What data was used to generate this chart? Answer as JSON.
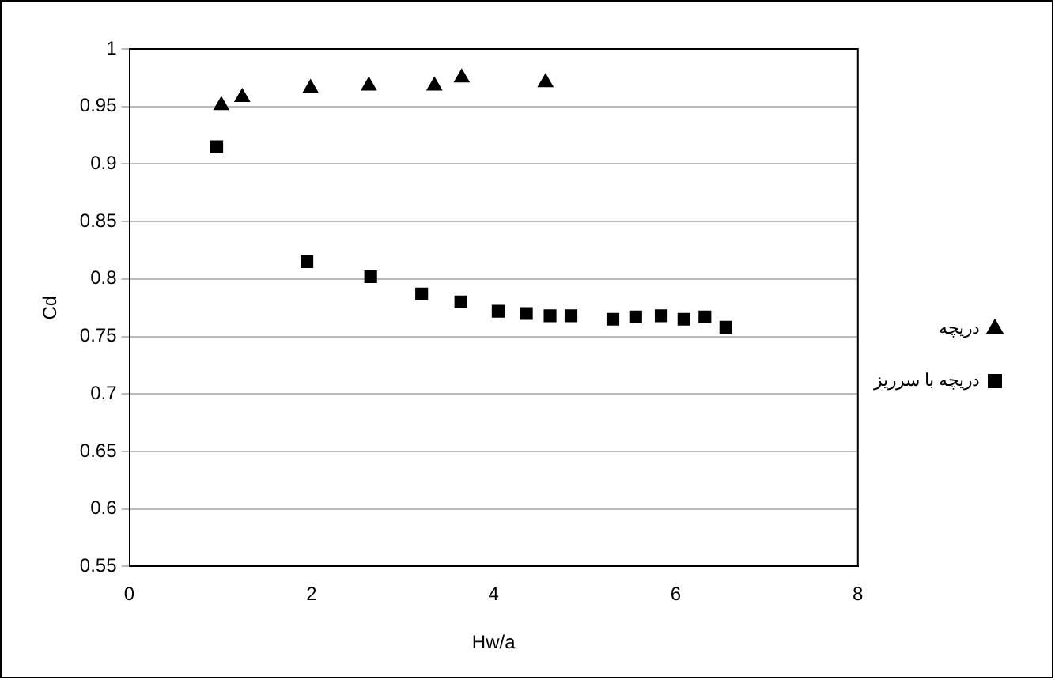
{
  "chart_data": {
    "type": "scatter",
    "xlabel": "Hw/a",
    "ylabel": "Cd",
    "xlim": [
      0,
      8
    ],
    "xticks": [
      0,
      2,
      4,
      6,
      8
    ],
    "ylim": [
      0.55,
      1
    ],
    "yticks": [
      0.55,
      0.6,
      0.65,
      0.7,
      0.75,
      0.8,
      0.85,
      0.9,
      0.95,
      1
    ],
    "grid": "y",
    "legend": "right",
    "series": [
      {
        "name": "دریچه",
        "color": "#000000",
        "marker": "triangle",
        "x": [
          1.01,
          1.24,
          1.99,
          2.63,
          3.35,
          3.65,
          4.57
        ],
        "values": [
          0.951,
          0.958,
          0.966,
          0.968,
          0.968,
          0.975,
          0.971
        ]
      },
      {
        "name": "دریچه با سرریز",
        "color": "#000000",
        "marker": "square",
        "x": [
          0.96,
          1.95,
          2.65,
          3.21,
          3.64,
          4.05,
          4.36,
          4.62,
          4.85,
          5.31,
          5.56,
          5.84,
          6.09,
          6.32,
          6.55
        ],
        "values": [
          0.915,
          0.815,
          0.802,
          0.787,
          0.78,
          0.772,
          0.77,
          0.768,
          0.768,
          0.765,
          0.767,
          0.768,
          0.765,
          0.767,
          0.758
        ]
      }
    ]
  }
}
